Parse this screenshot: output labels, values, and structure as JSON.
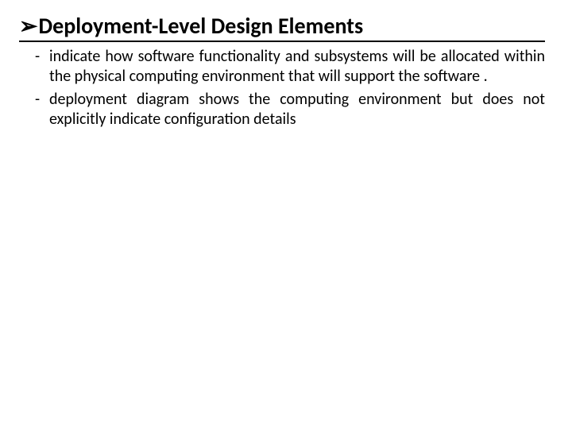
{
  "heading": {
    "bullet_glyph": "➢",
    "text": "Deployment-Level Design Elements"
  },
  "bullets": {
    "dash": "-",
    "items": [
      "indicate how software functionality and subsystems will be allocated within the physical computing environment that will support the software .",
      "deployment diagram shows the computing environment but does not explicitly indicate configuration details"
    ]
  },
  "colors": {
    "text": "#000000",
    "background": "#ffffff",
    "underline": "#000000"
  },
  "typography": {
    "heading_fontsize_pt": 21,
    "body_fontsize_pt": 15,
    "heading_weight": 700,
    "body_weight": 400,
    "font_family": "Calibri"
  }
}
